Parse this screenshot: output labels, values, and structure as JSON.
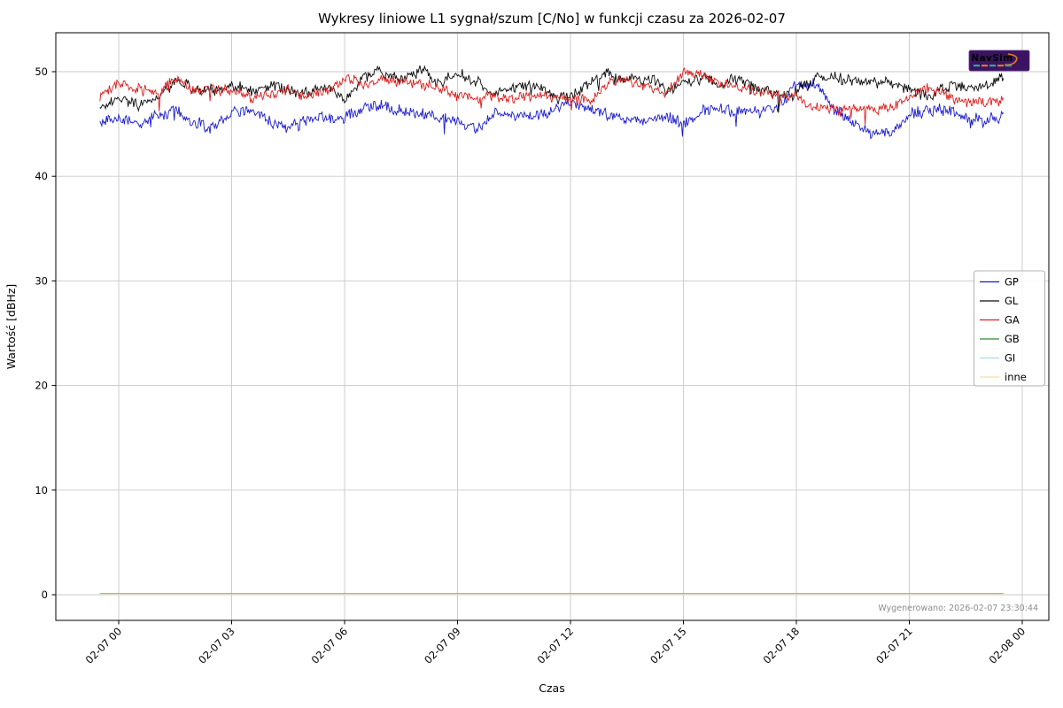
{
  "chart_data": {
    "type": "line",
    "title": "Wykresy liniowe L1 sygnał/szum [C/No] w funkcji czasu za 2026-02-07",
    "xlabel": "Czas",
    "ylabel": "Wartość [dBHz]",
    "x_tick_labels": [
      "02-07 00",
      "02-07 03",
      "02-07 06",
      "02-07 09",
      "02-07 12",
      "02-07 15",
      "02-07 18",
      "02-07 21",
      "02-08 00"
    ],
    "x_tick_hours": [
      0,
      3,
      6,
      9,
      12,
      15,
      18,
      21,
      24
    ],
    "y_ticks": [
      0,
      10,
      20,
      30,
      40,
      50
    ],
    "ylim": [
      -2.45,
      53.7
    ],
    "xlim_hours": [
      -1.67,
      24.7
    ],
    "grid": true,
    "legend_position": "center right",
    "annotation": "Wygenerowano: 2026-02-07 23:30:44",
    "watermark": "NavSim",
    "data_t_range": [
      -0.5,
      23.5
    ],
    "anchor_step_hours": 0.5,
    "series": [
      {
        "name": "GP",
        "color": "#1a1ad1",
        "noise": 0.5,
        "anchors": [
          45.2,
          45.5,
          45.1,
          45.6,
          46.4,
          45.0,
          44.7,
          45.9,
          46.5,
          45.2,
          44.6,
          45.3,
          45.7,
          45.4,
          46.5,
          46.7,
          46.2,
          46.0,
          45.7,
          45.3,
          44.6,
          46.1,
          45.9,
          45.8,
          46.3,
          47.2,
          46.4,
          46.0,
          45.2,
          45.1,
          45.9,
          44.9,
          46.3,
          46.5,
          46.2,
          46.1,
          46.7,
          48.6,
          48.8,
          46.4,
          45.3,
          44.1,
          44.0,
          45.9,
          46.4,
          46.2,
          45.6,
          45.3,
          45.8
        ]
      },
      {
        "name": "GL",
        "color": "#0a0a0a",
        "noise": 0.5,
        "anchors": [
          46.8,
          47.3,
          46.9,
          47.4,
          49.0,
          48.4,
          48.2,
          48.6,
          48.2,
          48.7,
          48.3,
          48.0,
          48.7,
          47.2,
          49.7,
          49.9,
          49.2,
          50.1,
          49.0,
          49.7,
          49.1,
          47.9,
          48.5,
          48.8,
          47.7,
          47.4,
          49.0,
          49.8,
          49.1,
          49.5,
          48.3,
          48.9,
          49.3,
          48.7,
          49.2,
          48.3,
          47.7,
          48.0,
          49.4,
          49.5,
          49.1,
          48.9,
          49.1,
          48.3,
          47.5,
          48.6,
          48.5,
          48.8,
          49.3
        ]
      },
      {
        "name": "GA",
        "color": "#dd1c1c",
        "noise": 0.45,
        "anchors": [
          47.6,
          48.9,
          48.4,
          47.9,
          49.3,
          48.2,
          48.4,
          48.4,
          47.5,
          47.8,
          48.2,
          47.7,
          48.3,
          49.3,
          48.8,
          49.3,
          49.0,
          49.0,
          48.4,
          47.9,
          47.4,
          47.7,
          47.5,
          47.8,
          47.6,
          47.4,
          47.3,
          49.0,
          49.2,
          48.6,
          47.8,
          49.9,
          49.6,
          48.8,
          48.4,
          48.1,
          47.8,
          47.6,
          46.6,
          46.3,
          46.5,
          46.4,
          46.6,
          47.4,
          48.5,
          47.7,
          47.1,
          47.1,
          47.3
        ]
      },
      {
        "name": "GB",
        "color": "#2e8b2e",
        "flat_value": 0.1
      },
      {
        "name": "GI",
        "color": "#add8e6",
        "flat_value": 0.02
      },
      {
        "name": "inne",
        "color": "#f5deb3",
        "flat_value": 0.06
      }
    ]
  }
}
